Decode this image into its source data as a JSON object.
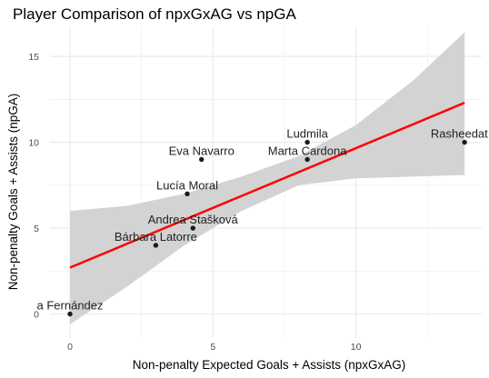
{
  "chart_data": {
    "type": "scatter",
    "title": "Player Comparison of npxGxAG vs npGA",
    "xlabel": "Non-penalty Expected Goals + Assists (npxGxAG)",
    "ylabel": "Non-penalty Goals + Assists (npGA)",
    "xlim": [
      -0.7,
      14.4
    ],
    "ylim": [
      -1.4,
      16.7
    ],
    "x_ticks": [
      0,
      5,
      10
    ],
    "y_ticks": [
      0,
      5,
      10,
      15
    ],
    "grid": true,
    "legend": "none",
    "points": [
      {
        "label": "a Fernández",
        "x": 0.0,
        "y": 0
      },
      {
        "label": "Bárbara Latorre",
        "x": 3.0,
        "y": 4
      },
      {
        "label": "Andrea Stašková",
        "x": 4.3,
        "y": 5
      },
      {
        "label": "Lucía Moral",
        "x": 4.1,
        "y": 7
      },
      {
        "label": "Eva Navarro",
        "x": 4.6,
        "y": 9
      },
      {
        "label": "Marta Cardona",
        "x": 8.3,
        "y": 9
      },
      {
        "label": "Ludmila",
        "x": 8.3,
        "y": 10
      },
      {
        "label": "Rasheedat A",
        "x": 13.8,
        "y": 10
      }
    ],
    "trend_line": {
      "x": [
        0,
        13.8
      ],
      "y": [
        2.7,
        12.3
      ]
    },
    "confidence_band": {
      "x": [
        0,
        2,
        4,
        6,
        8,
        10,
        12,
        13.8
      ],
      "upper": [
        6.0,
        6.3,
        7.0,
        8.0,
        9.2,
        11.0,
        13.6,
        16.4
      ],
      "lower": [
        -0.6,
        1.6,
        4.0,
        6.0,
        7.5,
        7.9,
        8.0,
        8.1
      ]
    },
    "colors": {
      "points": "#1a1a1a",
      "trend": "#ff0000",
      "band": "#d3d3d3",
      "grid": "#ebebeb"
    }
  }
}
